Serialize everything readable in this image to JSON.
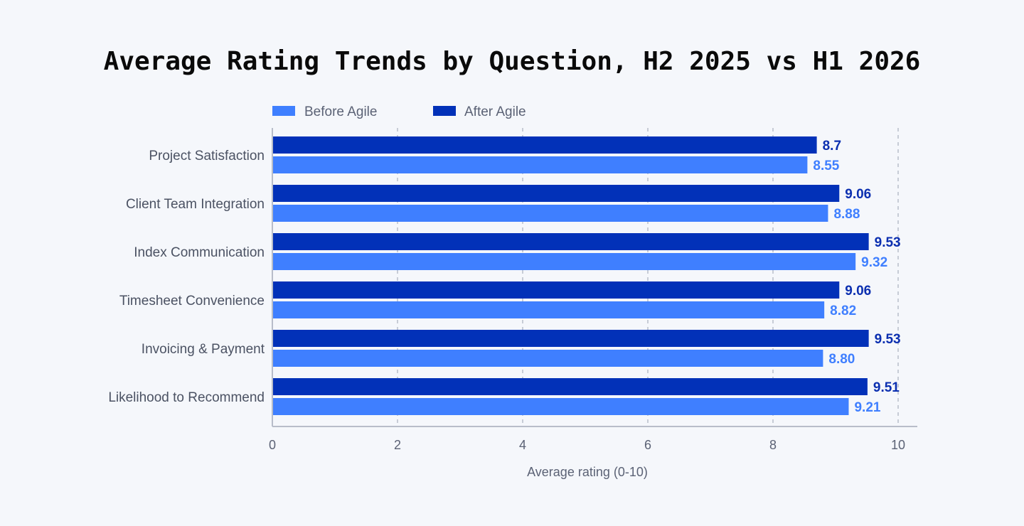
{
  "chart_data": {
    "type": "bar",
    "orientation": "horizontal",
    "title": "Average Rating Trends by Question, H2 2025 vs H1 2026",
    "xlabel": "Average rating (0-10)",
    "ylabel": "",
    "xlim": [
      0,
      10
    ],
    "xticks": [
      "0",
      "2",
      "4",
      "6",
      "8",
      "10"
    ],
    "grid": "vertical dashed",
    "legend_placement": "top-left",
    "categories": [
      "Project Satisfaction",
      "Client Team Integration",
      "Index Communication",
      "Timesheet Convenience",
      "Invoicing & Payment",
      "Likelihood to Recommend"
    ],
    "series": [
      {
        "name": "Before Agile",
        "color": "#3f7fff",
        "values": [
          8.55,
          8.88,
          9.32,
          8.82,
          8.8,
          9.21
        ],
        "labels": [
          "8.55",
          "8.88",
          "9.32",
          "8.82",
          "8.80",
          "9.21"
        ]
      },
      {
        "name": "After Agile",
        "color": "#0231b8",
        "values": [
          8.7,
          9.06,
          9.53,
          9.06,
          9.53,
          9.51
        ],
        "labels": [
          "8.7",
          "9.06",
          "9.53",
          "9.06",
          "9.53",
          "9.51"
        ]
      }
    ]
  }
}
